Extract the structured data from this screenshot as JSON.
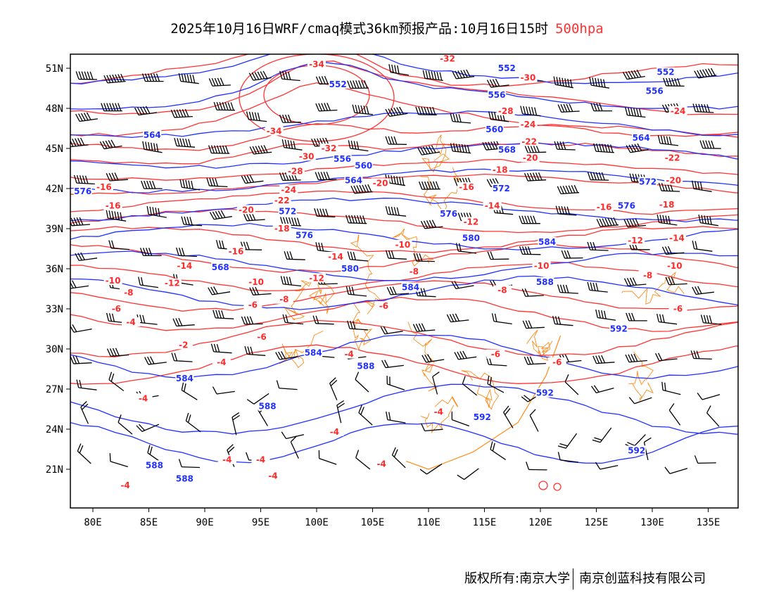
{
  "title": {
    "text": "2025年10月16日WRF/cmaq模式36km预报产品:10月16日15时",
    "level": "500hpa"
  },
  "footer": {
    "left": "版权所有:南京大学",
    "right": "南京创蓝科技有限公司"
  },
  "colors": {
    "height": "#2030ff",
    "temperature": "#ff3333",
    "coast": "#ff8c1a",
    "wind": "#000000"
  },
  "axes": {
    "lat_ticks": [
      "51N",
      "48N",
      "45N",
      "42N",
      "39N",
      "36N",
      "33N",
      "30N",
      "27N",
      "24N",
      "21N"
    ],
    "lat_values": [
      51,
      48,
      45,
      42,
      39,
      36,
      33,
      30,
      27,
      24,
      21
    ],
    "lon_ticks": [
      "80E",
      "85E",
      "90E",
      "95E",
      "100E",
      "105E",
      "110E",
      "115E",
      "120E",
      "125E",
      "130E",
      "135E"
    ],
    "lon_values": [
      80,
      85,
      90,
      95,
      100,
      105,
      110,
      115,
      120,
      125,
      130,
      135
    ],
    "lon_range": [
      78,
      138
    ],
    "lat_range": [
      18,
      52
    ]
  },
  "height_labels": [
    {
      "v": "552",
      "lon": 101.9,
      "lat": 49.8
    },
    {
      "v": "552",
      "lon": 117,
      "lat": 51
    },
    {
      "v": "552",
      "lon": 131.2,
      "lat": 50.7
    },
    {
      "v": "556",
      "lon": 116.1,
      "lat": 49
    },
    {
      "v": "556",
      "lon": 130.2,
      "lat": 49.3
    },
    {
      "v": "560",
      "lon": 115.9,
      "lat": 47.2
    },
    {
      "v": "564",
      "lon": 85.3,
      "lat": 46
    },
    {
      "v": "564",
      "lon": 129,
      "lat": 45.8
    },
    {
      "v": "568",
      "lon": 118.9,
      "lat": 44.9
    },
    {
      "v": "556",
      "lon": 102.3,
      "lat": 44.2
    },
    {
      "v": "560",
      "lon": 104.2,
      "lat": 43.7
    },
    {
      "v": "564",
      "lon": 103.3,
      "lat": 42.6
    },
    {
      "v": "572",
      "lon": 116.5,
      "lat": 42.8
    },
    {
      "v": "572",
      "lon": 129.6,
      "lat": 42.5
    },
    {
      "v": "576",
      "lon": 79.1,
      "lat": 41.8
    },
    {
      "v": "572",
      "lon": 97.4,
      "lat": 40.3
    },
    {
      "v": "576",
      "lon": 111.8,
      "lat": 40.1
    },
    {
      "v": "576",
      "lon": 127.7,
      "lat": 40.7
    },
    {
      "v": "576",
      "lon": 98.9,
      "lat": 38.5
    },
    {
      "v": "580",
      "lon": 113.8,
      "lat": 38.3
    },
    {
      "v": "584",
      "lon": 120.6,
      "lat": 38
    },
    {
      "v": "580",
      "lon": 101.1,
      "lat": 36
    },
    {
      "v": "584",
      "lon": 108.4,
      "lat": 34.6
    },
    {
      "v": "588",
      "lon": 120.4,
      "lat": 35.8
    },
    {
      "v": "568",
      "lon": 91.4,
      "lat": 36.9
    },
    {
      "v": "592",
      "lon": 127,
      "lat": 31.5
    },
    {
      "v": "584",
      "lon": 99.7,
      "lat": 29.7
    },
    {
      "v": "588",
      "lon": 104.4,
      "lat": 28.7
    },
    {
      "v": "584",
      "lon": 88.2,
      "lat": 27.8
    },
    {
      "v": "592",
      "lon": 120.4,
      "lat": 26.7
    },
    {
      "v": "588",
      "lon": 95.6,
      "lat": 25.7
    },
    {
      "v": "592",
      "lon": 114.8,
      "lat": 24.9
    },
    {
      "v": "592",
      "lon": 128.6,
      "lat": 22.4
    },
    {
      "v": "588",
      "lon": 85.5,
      "lat": 21.3
    },
    {
      "v": "588",
      "lon": 88.2,
      "lat": 20.3
    }
  ],
  "temperature_labels": [
    {
      "v": "-32",
      "lon": 111.7,
      "lat": 51.7
    },
    {
      "v": "-34",
      "lon": 100,
      "lat": 51.3
    },
    {
      "v": "-30",
      "lon": 118.9,
      "lat": 50.3
    },
    {
      "v": "-34",
      "lon": 96.2,
      "lat": 46.3
    },
    {
      "v": "-28",
      "lon": 116.9,
      "lat": 47.8
    },
    {
      "v": "-24",
      "lon": 118.9,
      "lat": 46.8
    },
    {
      "v": "-24",
      "lon": 132.3,
      "lat": 47.8
    },
    {
      "v": "-32",
      "lon": 101.1,
      "lat": 45
    },
    {
      "v": "-30",
      "lon": 99.1,
      "lat": 44.4
    },
    {
      "v": "-22",
      "lon": 119,
      "lat": 45.5
    },
    {
      "v": "-20",
      "lon": 119.1,
      "lat": 44.3
    },
    {
      "v": "-28",
      "lon": 98.1,
      "lat": 43.3
    },
    {
      "v": "-18",
      "lon": 116.4,
      "lat": 43.4
    },
    {
      "v": "-22",
      "lon": 131.8,
      "lat": 44.3
    },
    {
      "v": "-20",
      "lon": 131.9,
      "lat": 42.6
    },
    {
      "v": "-16",
      "lon": 81,
      "lat": 42.1
    },
    {
      "v": "-20",
      "lon": 105.7,
      "lat": 42.4
    },
    {
      "v": "-16",
      "lon": 113.4,
      "lat": 42.1
    },
    {
      "v": "-24",
      "lon": 97.5,
      "lat": 41.9
    },
    {
      "v": "-22",
      "lon": 96.9,
      "lat": 41.1
    },
    {
      "v": "-16",
      "lon": 81.8,
      "lat": 40.7
    },
    {
      "v": "-20",
      "lon": 93.7,
      "lat": 40.4
    },
    {
      "v": "-14",
      "lon": 115.7,
      "lat": 40.7
    },
    {
      "v": "-16",
      "lon": 125.7,
      "lat": 40.6
    },
    {
      "v": "-18",
      "lon": 131.3,
      "lat": 40.8
    },
    {
      "v": "-12",
      "lon": 113.8,
      "lat": 39.5
    },
    {
      "v": "-18",
      "lon": 96.9,
      "lat": 39
    },
    {
      "v": "-14",
      "lon": 132.2,
      "lat": 38.3
    },
    {
      "v": "-12",
      "lon": 128.5,
      "lat": 38.1
    },
    {
      "v": "-10",
      "lon": 107.7,
      "lat": 37.8
    },
    {
      "v": "-16",
      "lon": 92.8,
      "lat": 37.3
    },
    {
      "v": "-14",
      "lon": 101.7,
      "lat": 36.9
    },
    {
      "v": "-14",
      "lon": 88.2,
      "lat": 36.2
    },
    {
      "v": "-10",
      "lon": 120.1,
      "lat": 36.2
    },
    {
      "v": "-10",
      "lon": 132,
      "lat": 36.2
    },
    {
      "v": "-12",
      "lon": 87.1,
      "lat": 35.7
    },
    {
      "v": "-8",
      "lon": 108.7,
      "lat": 35.8
    },
    {
      "v": "-12",
      "lon": 100,
      "lat": 35.3
    },
    {
      "v": "-10",
      "lon": 81.8,
      "lat": 35.1
    },
    {
      "v": "-10",
      "lon": 94.6,
      "lat": 35
    },
    {
      "v": "-8",
      "lon": 129.6,
      "lat": 35.5
    },
    {
      "v": "-8",
      "lon": 83.2,
      "lat": 34.2
    },
    {
      "v": "-8",
      "lon": 97.1,
      "lat": 33.7
    },
    {
      "v": "-8",
      "lon": 116.6,
      "lat": 34.4
    },
    {
      "v": "-6",
      "lon": 94.3,
      "lat": 33.3
    },
    {
      "v": "-6",
      "lon": 82.1,
      "lat": 33
    },
    {
      "v": "-6",
      "lon": 106,
      "lat": 33.2
    },
    {
      "v": "-6",
      "lon": 132.3,
      "lat": 33
    },
    {
      "v": "-4",
      "lon": 83.4,
      "lat": 32
    },
    {
      "v": "-6",
      "lon": 95.1,
      "lat": 30.9
    },
    {
      "v": "-2",
      "lon": 88.1,
      "lat": 30.3
    },
    {
      "v": "-4",
      "lon": 91.5,
      "lat": 29
    },
    {
      "v": "-4",
      "lon": 102.9,
      "lat": 29.6
    },
    {
      "v": "-6",
      "lon": 116,
      "lat": 29.6
    },
    {
      "v": "-6",
      "lon": 121.5,
      "lat": 29
    },
    {
      "v": "-4",
      "lon": 84.5,
      "lat": 26.3
    },
    {
      "v": "-4",
      "lon": 110.9,
      "lat": 25.3
    },
    {
      "v": "-4",
      "lon": 101.6,
      "lat": 23.8
    },
    {
      "v": "-4",
      "lon": 92,
      "lat": 21.7
    },
    {
      "v": "-4",
      "lon": 95,
      "lat": 21.7
    },
    {
      "v": "-4",
      "lon": 96.1,
      "lat": 20.5
    },
    {
      "v": "-4",
      "lon": 105.8,
      "lat": 21.4
    },
    {
      "v": "-4",
      "lon": 82.9,
      "lat": 19.8
    }
  ]
}
